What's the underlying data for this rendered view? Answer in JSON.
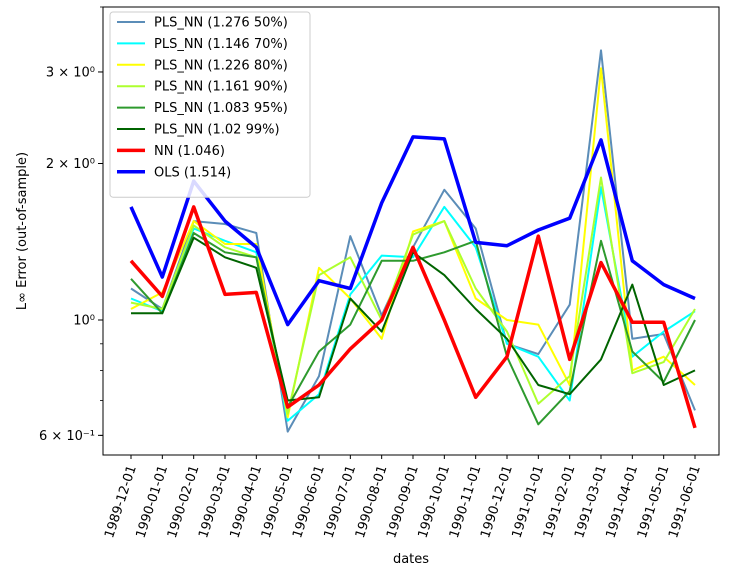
{
  "chart_data": {
    "type": "line",
    "xlabel": "dates",
    "ylabel": "L∞ Error (out-of-sample)",
    "yscale": "log",
    "ylim": [
      0.55,
      4.0
    ],
    "grid": false,
    "legend_position": "upper-left",
    "x": [
      "1989-12-01",
      "1990-01-01",
      "1990-02-01",
      "1990-03-01",
      "1990-04-01",
      "1990-05-01",
      "1990-06-01",
      "1990-07-01",
      "1990-08-01",
      "1990-09-01",
      "1990-10-01",
      "1990-11-01",
      "1990-12-01",
      "1991-01-01",
      "1991-02-01",
      "1991-03-01",
      "1991-04-01",
      "1991-05-01",
      "1991-06-01"
    ],
    "yticks": [
      {
        "value": 0.6,
        "label": "6 × 10⁻¹"
      },
      {
        "value": 1.0,
        "label": "10⁰"
      },
      {
        "value": 2.0,
        "label": "2 × 10⁰"
      },
      {
        "value": 3.0,
        "label": "3 × 10⁰"
      }
    ],
    "series": [
      {
        "name": "PLS_NN (1.276 50%)",
        "color": "#5b8db8",
        "width": 2,
        "values": [
          1.15,
          1.05,
          1.55,
          1.53,
          1.47,
          0.61,
          0.78,
          1.45,
          1.02,
          1.38,
          1.78,
          1.5,
          0.9,
          0.86,
          1.07,
          3.3,
          0.92,
          0.94,
          0.67
        ]
      },
      {
        "name": "PLS_NN (1.146 70%)",
        "color": "#00ffff",
        "width": 2,
        "values": [
          1.1,
          1.04,
          1.5,
          1.42,
          1.35,
          0.64,
          0.72,
          1.12,
          1.33,
          1.32,
          1.65,
          1.38,
          0.9,
          0.85,
          0.7,
          1.8,
          0.85,
          0.95,
          1.04
        ]
      },
      {
        "name": "PLS_NN (1.226 80%)",
        "color": "#ffff00",
        "width": 2,
        "values": [
          1.05,
          1.13,
          1.55,
          1.4,
          1.4,
          0.65,
          1.26,
          1.1,
          0.92,
          1.48,
          1.55,
          1.1,
          1.0,
          0.98,
          0.75,
          3.05,
          0.8,
          0.85,
          0.75
        ]
      },
      {
        "name": "PLS_NN (1.161 90%)",
        "color": "#adff2f",
        "width": 2,
        "values": [
          1.08,
          1.05,
          1.52,
          1.38,
          1.32,
          0.66,
          1.22,
          1.32,
          1.0,
          1.46,
          1.55,
          1.15,
          0.95,
          0.69,
          0.78,
          1.88,
          0.79,
          0.83,
          1.05
        ]
      },
      {
        "name": "PLS_NN (1.083 95%)",
        "color": "#2e9a2e",
        "width": 2,
        "values": [
          1.2,
          1.03,
          1.47,
          1.35,
          1.32,
          0.68,
          0.87,
          0.98,
          1.3,
          1.3,
          1.35,
          1.42,
          0.85,
          0.63,
          0.73,
          1.42,
          0.87,
          0.76,
          1.0
        ]
      },
      {
        "name": "PLS_NN (1.02 99%)",
        "color": "#006400",
        "width": 2,
        "values": [
          1.03,
          1.03,
          1.44,
          1.32,
          1.26,
          0.7,
          0.71,
          1.1,
          0.95,
          1.35,
          1.22,
          1.05,
          0.92,
          0.75,
          0.72,
          0.84,
          1.17,
          0.75,
          0.8
        ]
      },
      {
        "name": "NN (1.046)",
        "color": "#ff0000",
        "width": 3.5,
        "values": [
          1.3,
          1.11,
          1.65,
          1.12,
          1.13,
          0.68,
          0.75,
          0.88,
          1.0,
          1.38,
          1.0,
          0.71,
          0.85,
          1.45,
          0.84,
          1.29,
          0.99,
          0.99,
          0.62
        ]
      },
      {
        "name": "OLS (1.514)",
        "color": "#0000ff",
        "width": 3.5,
        "values": [
          1.65,
          1.21,
          1.85,
          1.55,
          1.38,
          0.98,
          1.19,
          1.15,
          1.68,
          2.25,
          2.23,
          1.41,
          1.39,
          1.49,
          1.57,
          2.22,
          1.3,
          1.17,
          1.1
        ]
      }
    ]
  }
}
